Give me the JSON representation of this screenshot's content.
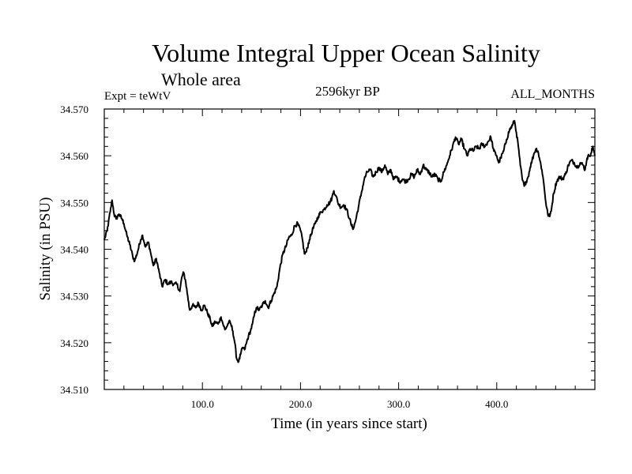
{
  "chart_data": {
    "type": "line",
    "title": "Volume Integral Upper Ocean Salinity",
    "subtitle": "Whole area",
    "left_label": "Expt = teWtV",
    "center_label": "2596kyr BP",
    "right_label": "ALL_MONTHS",
    "xlabel": "Time (in years since start)",
    "ylabel": "Salinity (in PSU)",
    "xlim": [
      0,
      500
    ],
    "ylim": [
      34.51,
      34.57
    ],
    "x_ticks": [
      100,
      200,
      300,
      400
    ],
    "x_tick_labels": [
      "100.0",
      "200.0",
      "300.0",
      "400.0"
    ],
    "y_ticks": [
      34.51,
      34.52,
      34.53,
      34.54,
      34.55,
      34.56,
      34.57
    ],
    "y_tick_labels": [
      "34.510",
      "34.520",
      "34.530",
      "34.540",
      "34.550",
      "34.560",
      "34.570"
    ],
    "grid": false,
    "series": [
      {
        "name": "Salinity",
        "color": "#000000",
        "anchors": [
          [
            0,
            34.542
          ],
          [
            3,
            34.544
          ],
          [
            6,
            34.548
          ],
          [
            8,
            34.5505
          ],
          [
            10,
            34.5475
          ],
          [
            12,
            34.5465
          ],
          [
            15,
            34.5475
          ],
          [
            18,
            34.5465
          ],
          [
            20,
            34.5455
          ],
          [
            23,
            34.543
          ],
          [
            26,
            34.541
          ],
          [
            29,
            34.5385
          ],
          [
            31,
            34.5375
          ],
          [
            34,
            34.5395
          ],
          [
            37,
            34.542
          ],
          [
            39,
            34.543
          ],
          [
            42,
            34.5405
          ],
          [
            45,
            34.5415
          ],
          [
            48,
            34.5385
          ],
          [
            50,
            34.5365
          ],
          [
            53,
            34.538
          ],
          [
            56,
            34.535
          ],
          [
            59,
            34.532
          ],
          [
            62,
            34.5335
          ],
          [
            65,
            34.5325
          ],
          [
            68,
            34.533
          ],
          [
            71,
            34.5325
          ],
          [
            74,
            34.5325
          ],
          [
            77,
            34.531
          ],
          [
            79,
            34.534
          ],
          [
            81,
            34.535
          ],
          [
            83,
            34.533
          ],
          [
            85,
            34.53
          ],
          [
            87,
            34.527
          ],
          [
            90,
            34.528
          ],
          [
            93,
            34.5275
          ],
          [
            96,
            34.5285
          ],
          [
            99,
            34.527
          ],
          [
            102,
            34.528
          ],
          [
            105,
            34.5265
          ],
          [
            108,
            34.525
          ],
          [
            110,
            34.5235
          ],
          [
            113,
            34.5245
          ],
          [
            116,
            34.524
          ],
          [
            119,
            34.5255
          ],
          [
            121,
            34.524
          ],
          [
            123,
            34.5228
          ],
          [
            125,
            34.5235
          ],
          [
            127,
            34.5245
          ],
          [
            129,
            34.524
          ],
          [
            131,
            34.5225
          ],
          [
            133,
            34.52
          ],
          [
            135,
            34.5165
          ],
          [
            137,
            34.516
          ],
          [
            139,
            34.5175
          ],
          [
            141,
            34.519
          ],
          [
            143,
            34.5185
          ],
          [
            145,
            34.52
          ],
          [
            147,
            34.5215
          ],
          [
            149,
            34.5225
          ],
          [
            151,
            34.524
          ],
          [
            153,
            34.526
          ],
          [
            155,
            34.5275
          ],
          [
            158,
            34.527
          ],
          [
            161,
            34.528
          ],
          [
            164,
            34.529
          ],
          [
            167,
            34.5275
          ],
          [
            170,
            34.529
          ],
          [
            173,
            34.5305
          ],
          [
            176,
            34.532
          ],
          [
            179,
            34.536
          ],
          [
            182,
            34.539
          ],
          [
            185,
            34.5405
          ],
          [
            188,
            34.5425
          ],
          [
            191,
            34.543
          ],
          [
            194,
            34.545
          ],
          [
            197,
            34.5455
          ],
          [
            200,
            34.544
          ],
          [
            202,
            34.542
          ],
          [
            204,
            34.539
          ],
          [
            206,
            34.5395
          ],
          [
            209,
            34.542
          ],
          [
            212,
            34.544
          ],
          [
            215,
            34.5455
          ],
          [
            218,
            34.547
          ],
          [
            221,
            34.548
          ],
          [
            224,
            34.5485
          ],
          [
            227,
            34.5495
          ],
          [
            230,
            34.55
          ],
          [
            232,
            34.551
          ],
          [
            234,
            34.5525
          ],
          [
            236,
            34.5515
          ],
          [
            238,
            34.55
          ],
          [
            241,
            34.549
          ],
          [
            244,
            34.5495
          ],
          [
            247,
            34.5485
          ],
          [
            250,
            34.5465
          ],
          [
            252,
            34.545
          ],
          [
            254,
            34.5445
          ],
          [
            256,
            34.546
          ],
          [
            259,
            34.549
          ],
          [
            262,
            34.552
          ],
          [
            265,
            34.555
          ],
          [
            268,
            34.5565
          ],
          [
            271,
            34.557
          ],
          [
            274,
            34.5555
          ],
          [
            277,
            34.5565
          ],
          [
            280,
            34.5575
          ],
          [
            283,
            34.5565
          ],
          [
            286,
            34.558
          ],
          [
            289,
            34.556
          ],
          [
            292,
            34.557
          ],
          [
            295,
            34.555
          ],
          [
            298,
            34.5555
          ],
          [
            301,
            34.5545
          ],
          [
            304,
            34.555
          ],
          [
            307,
            34.5545
          ],
          [
            310,
            34.555
          ],
          [
            313,
            34.556
          ],
          [
            316,
            34.5555
          ],
          [
            319,
            34.557
          ],
          [
            322,
            34.556
          ],
          [
            325,
            34.558
          ],
          [
            328,
            34.557
          ],
          [
            331,
            34.5565
          ],
          [
            334,
            34.5555
          ],
          [
            337,
            34.556
          ],
          [
            340,
            34.555
          ],
          [
            343,
            34.5545
          ],
          [
            346,
            34.5565
          ],
          [
            349,
            34.558
          ],
          [
            352,
            34.56
          ],
          [
            355,
            34.562
          ],
          [
            358,
            34.564
          ],
          [
            361,
            34.5625
          ],
          [
            364,
            34.5635
          ],
          [
            367,
            34.5615
          ],
          [
            370,
            34.56
          ],
          [
            373,
            34.5615
          ],
          [
            376,
            34.561
          ],
          [
            379,
            34.562
          ],
          [
            382,
            34.5615
          ],
          [
            385,
            34.5625
          ],
          [
            388,
            34.562
          ],
          [
            391,
            34.563
          ],
          [
            394,
            34.564
          ],
          [
            397,
            34.561
          ],
          [
            400,
            34.56
          ],
          [
            402,
            34.5585
          ],
          [
            404,
            34.5595
          ],
          [
            407,
            34.561
          ],
          [
            410,
            34.5635
          ],
          [
            413,
            34.5655
          ],
          [
            416,
            34.5665
          ],
          [
            418,
            34.5675
          ],
          [
            420,
            34.565
          ],
          [
            422,
            34.562
          ],
          [
            424,
            34.558
          ],
          [
            426,
            34.555
          ],
          [
            428,
            34.5535
          ],
          [
            430,
            34.5545
          ],
          [
            432,
            34.5555
          ],
          [
            434,
            34.5575
          ],
          [
            436,
            34.559
          ],
          [
            438,
            34.5605
          ],
          [
            440,
            34.5615
          ],
          [
            442,
            34.561
          ],
          [
            444,
            34.559
          ],
          [
            446,
            34.557
          ],
          [
            448,
            34.554
          ],
          [
            450,
            34.55
          ],
          [
            452,
            34.5475
          ],
          [
            454,
            34.547
          ],
          [
            456,
            34.549
          ],
          [
            458,
            34.552
          ],
          [
            461,
            34.5545
          ],
          [
            464,
            34.5555
          ],
          [
            467,
            34.555
          ],
          [
            470,
            34.556
          ],
          [
            473,
            34.558
          ],
          [
            476,
            34.559
          ],
          [
            479,
            34.5585
          ],
          [
            482,
            34.5575
          ],
          [
            485,
            34.5585
          ],
          [
            488,
            34.558
          ],
          [
            490,
            34.557
          ],
          [
            492,
            34.5595
          ],
          [
            494,
            34.56
          ],
          [
            496,
            34.5605
          ],
          [
            498,
            34.562
          ],
          [
            500,
            34.56
          ]
        ]
      }
    ]
  }
}
